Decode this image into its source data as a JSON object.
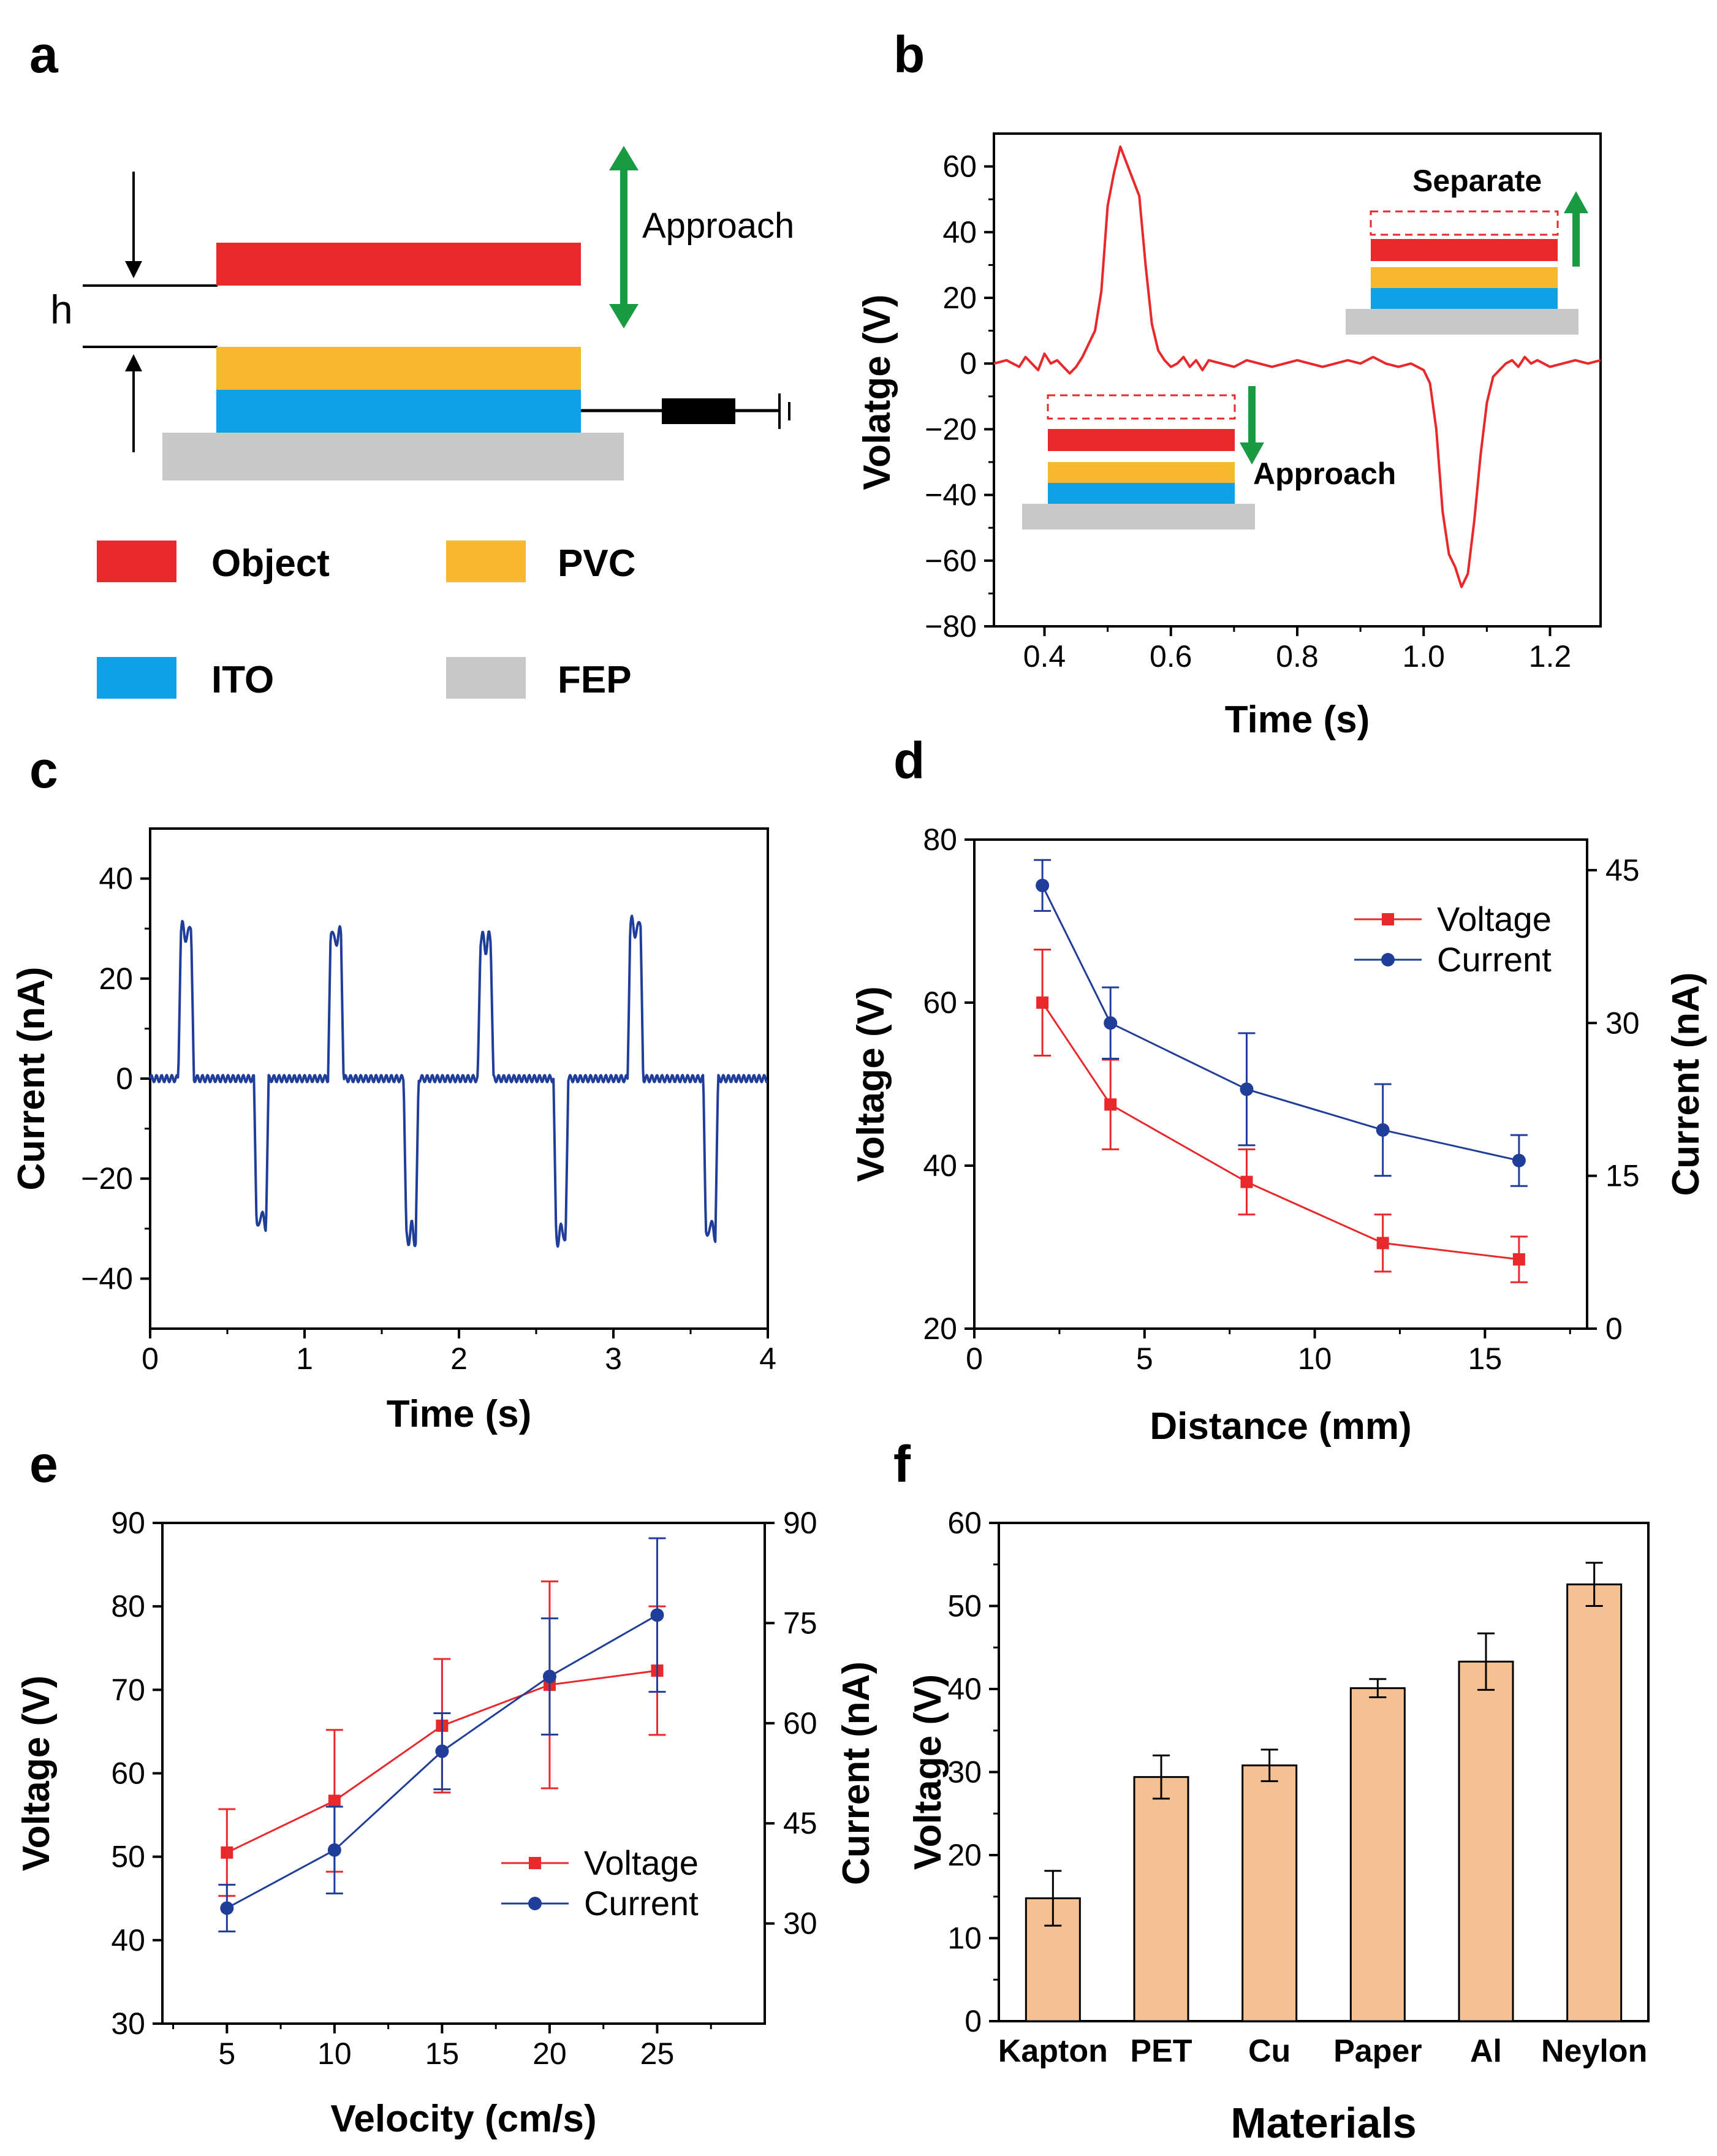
{
  "colors": {
    "object": "#e8282b",
    "pvc": "#f7b72f",
    "ito": "#0fa0e6",
    "fep": "#c8c8c8",
    "arrow_green": "#1b9a44",
    "red_line": "#e8282b",
    "blue_line": "#1f3d99",
    "bar_fill": "#f5c192"
  },
  "panels": {
    "a": {
      "label": "a",
      "h_label": "h",
      "approach_label": "Approach",
      "legend": [
        {
          "name": "Object",
          "color_key": "object"
        },
        {
          "name": "PVC",
          "color_key": "pvc"
        },
        {
          "name": "ITO",
          "color_key": "ito"
        },
        {
          "name": "FEP",
          "color_key": "fep"
        }
      ]
    },
    "b": {
      "label": "b",
      "separate_label": "Separate",
      "approach_label": "Approach"
    },
    "c": {
      "label": "c"
    },
    "d": {
      "label": "d"
    },
    "e": {
      "label": "e"
    },
    "f": {
      "label": "f"
    }
  },
  "chart_data": [
    {
      "id": "b",
      "type": "line",
      "xlabel": "Time (s)",
      "ylabel": "Volatge (V)",
      "xlim": [
        0.32,
        1.28
      ],
      "ylim": [
        -80,
        70
      ],
      "xticks": [
        0.4,
        0.6,
        0.8,
        1.0,
        1.2
      ],
      "xticklabels": [
        "0.4",
        "0.6",
        "0.8",
        "1.0",
        "1.2"
      ],
      "yticks": [
        -80,
        -60,
        -40,
        -20,
        0,
        20,
        40,
        60
      ],
      "yticklabels": [
        "−80",
        "−60",
        "−40",
        "−20",
        "0",
        "20",
        "40",
        "60"
      ],
      "x": [
        0.32,
        0.34,
        0.36,
        0.37,
        0.38,
        0.39,
        0.4,
        0.41,
        0.42,
        0.43,
        0.44,
        0.45,
        0.46,
        0.47,
        0.48,
        0.49,
        0.5,
        0.51,
        0.52,
        0.53,
        0.54,
        0.55,
        0.56,
        0.57,
        0.58,
        0.59,
        0.6,
        0.61,
        0.62,
        0.63,
        0.64,
        0.65,
        0.66,
        0.68,
        0.7,
        0.72,
        0.74,
        0.76,
        0.78,
        0.8,
        0.82,
        0.84,
        0.86,
        0.88,
        0.9,
        0.92,
        0.94,
        0.96,
        0.98,
        1.0,
        1.01,
        1.02,
        1.03,
        1.04,
        1.05,
        1.06,
        1.07,
        1.08,
        1.09,
        1.1,
        1.11,
        1.12,
        1.13,
        1.14,
        1.15,
        1.16,
        1.17,
        1.18,
        1.19,
        1.2,
        1.22,
        1.24,
        1.26,
        1.28
      ],
      "values": [
        0,
        1,
        -1,
        2,
        0,
        -2,
        3,
        0,
        1,
        -1,
        -3,
        -1,
        2,
        6,
        10,
        22,
        48,
        58,
        66,
        61,
        56,
        51,
        30,
        12,
        4,
        1,
        -1,
        0,
        2,
        -1,
        1,
        -2,
        1,
        0,
        -1,
        1,
        0,
        -1,
        0,
        1,
        0,
        -1,
        0,
        1,
        0,
        2,
        0,
        -1,
        0,
        -2,
        -6,
        -20,
        -45,
        -58,
        -62,
        -68,
        -64,
        -48,
        -28,
        -12,
        -4,
        -2,
        0,
        1,
        -1,
        2,
        0,
        1,
        0,
        -1,
        0,
        1,
        0,
        1
      ]
    },
    {
      "id": "c",
      "type": "line",
      "xlabel": "Time (s)",
      "ylabel": "Current (nA)",
      "xlim": [
        0,
        4
      ],
      "ylim": [
        -50,
        50
      ],
      "xticks": [
        0,
        1,
        2,
        3,
        4
      ],
      "xticklabels": [
        "0",
        "1",
        "2",
        "3",
        "4"
      ],
      "yticks": [
        -40,
        -20,
        0,
        20,
        40
      ],
      "yticklabels": [
        "−40",
        "−20",
        "0",
        "20",
        "40"
      ],
      "period_s": 0.97,
      "cycles": 4,
      "positive_peaks_nA": [
        31,
        30,
        29,
        32
      ],
      "negative_peaks_nA": [
        -30,
        -33,
        -33,
        -32
      ]
    },
    {
      "id": "d",
      "type": "line",
      "xlabel": "Distance (mm)",
      "ylabel": "Voltage (V)",
      "y2label": "Current (nA)",
      "xlim": [
        0,
        18
      ],
      "ylim": [
        20,
        80
      ],
      "y2lim": [
        0,
        48
      ],
      "xticks": [
        0,
        5,
        10,
        15
      ],
      "yticks": [
        20,
        40,
        60,
        80
      ],
      "y2ticks": [
        0,
        15,
        30,
        45
      ],
      "legend": "top-right",
      "x": [
        2,
        4,
        8,
        12,
        16
      ],
      "series": [
        {
          "name": "Voltage",
          "axis": "left",
          "color_key": "red_line",
          "marker": "square",
          "values": [
            60,
            47.5,
            38,
            30.5,
            28.5
          ],
          "err": [
            6.5,
            5.5,
            4,
            3.5,
            2.8
          ]
        },
        {
          "name": "Current",
          "axis": "right",
          "color_key": "blue_line",
          "marker": "circle",
          "values": [
            43.5,
            30,
            23.5,
            19.5,
            16.5
          ],
          "err": [
            2.5,
            3.5,
            5.5,
            4.5,
            2.5
          ]
        }
      ]
    },
    {
      "id": "e",
      "type": "line",
      "xlabel": "Velocity (cm/s)",
      "ylabel": "Voltage (V)",
      "y2label": "Current (nA)",
      "xlim": [
        2,
        30
      ],
      "ylim": [
        30,
        90
      ],
      "y2lim": [
        15,
        90
      ],
      "xticks": [
        5,
        10,
        15,
        20,
        25
      ],
      "yticks": [
        30,
        40,
        50,
        60,
        70,
        80,
        90
      ],
      "y2ticks": [
        30,
        45,
        60,
        75,
        90
      ],
      "legend": "lower-right",
      "x": [
        5,
        10,
        15,
        20,
        25
      ],
      "series": [
        {
          "name": "Voltage",
          "axis": "left",
          "color_key": "red_line",
          "marker": "square",
          "values": [
            50.5,
            56.7,
            65.7,
            70.6,
            72.3
          ],
          "err": [
            5.2,
            8.5,
            8,
            12.4,
            7.7
          ]
        },
        {
          "name": "Current",
          "axis": "right",
          "color_key": "blue_line",
          "marker": "circle",
          "values": [
            32.3,
            41.0,
            55.8,
            67.0,
            76.2
          ],
          "err": [
            3.5,
            6.5,
            5.7,
            8.7,
            11.5
          ]
        }
      ]
    },
    {
      "id": "f",
      "type": "bar",
      "xlabel": "Materials",
      "ylabel": "Voltage (V)",
      "ylim": [
        0,
        60
      ],
      "yticks": [
        0,
        10,
        20,
        30,
        40,
        50,
        60
      ],
      "categories": [
        "Kapton",
        "PET",
        "Cu",
        "Paper",
        "Al",
        "Neylon"
      ],
      "values": [
        14.8,
        29.4,
        30.8,
        40.1,
        43.3,
        52.6
      ],
      "err": [
        3.3,
        2.6,
        1.9,
        1.1,
        3.4,
        2.6
      ]
    }
  ]
}
